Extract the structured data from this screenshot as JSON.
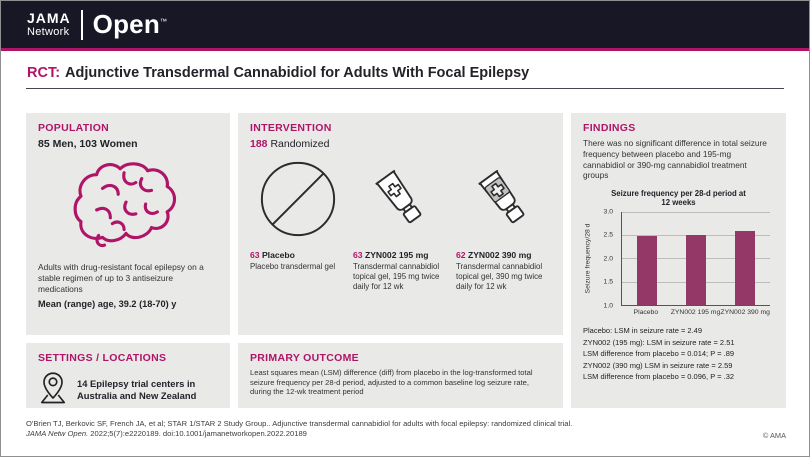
{
  "header": {
    "logo_jama": "JAMA",
    "logo_network": "Network",
    "logo_open": "Open",
    "logo_tm": "™"
  },
  "title": {
    "tag": "RCT:",
    "text": "Adjunctive Transdermal Cannabidiol for Adults With Focal Epilepsy"
  },
  "population": {
    "heading": "POPULATION",
    "counts": "85 Men, 103 Women",
    "description": "Adults with drug-resistant focal epilepsy on a stable regimen of up to 3 antiseizure medications",
    "age": "Mean (range) age, 39.2 (18-70) y"
  },
  "settings": {
    "heading": "SETTINGS / LOCATIONS",
    "text": "14 Epilepsy trial centers in Australia and New Zealand"
  },
  "intervention": {
    "heading": "INTERVENTION",
    "randomized_count": "188",
    "randomized_label": "Randomized",
    "groups": [
      {
        "count": "63",
        "name": "Placebo",
        "description": "Placebo transdermal gel"
      },
      {
        "count": "63",
        "name": "ZYN002 195 mg",
        "description": "Transdermal cannabidiol topical gel, 195 mg twice daily for 12 wk"
      },
      {
        "count": "62",
        "name": "ZYN002 390 mg",
        "description": "Transdermal cannabidiol topical gel, 390 mg twice daily for 12 wk"
      }
    ]
  },
  "primary_outcome": {
    "heading": "PRIMARY OUTCOME",
    "text": "Least squares mean (LSM) difference (diff) from placebo in the log-transformed total seizure frequency per 28-d period, adjusted to a common baseline log seizure rate, during the 12-wk treatment period"
  },
  "findings": {
    "heading": "FINDINGS",
    "summary": "There was no significant difference in total seizure frequency between placebo and 195-mg cannabidiol or 390-mg cannabidiol treatment groups",
    "results": [
      "Placebo: LSM in seizure rate = 2.49",
      "ZYN002 (195 mg): LSM in seizure rate = 2.51",
      "LSM difference from placebo = 0.014; P = .89",
      "ZYN002 (390 mg) LSM in seizure rate = 2.59",
      "LSM difference from placebo = 0.096, P = .32"
    ]
  },
  "chart_data": {
    "type": "bar",
    "title": "Seizure frequency per 28-d period at 12 weeks",
    "ylabel": "Seizure frequency/28 d",
    "categories": [
      "Placebo",
      "ZYN002 195 mg",
      "ZYN002 390 mg"
    ],
    "values": [
      2.49,
      2.51,
      2.59
    ],
    "ylim": [
      1.0,
      3.0
    ],
    "yticks": [
      3.0,
      2.5,
      2.0,
      1.5,
      1.0
    ],
    "bar_color": "#943868",
    "grid": true,
    "legend_position": "none"
  },
  "footer": {
    "citation_line1": "O'Brien TJ, Berkovic SF, French JA, et al; STAR 1/STAR 2 Study Group.. Adjunctive transdermal cannabidiol for adults with focal epilepsy: randomized clinical trial.",
    "citation_journal": "JAMA Netw Open.",
    "citation_line2_rest": " 2022;5(7):e2220189. doi:10.1001/jamanetworkopen.2022.20189",
    "copyright": "© AMA"
  },
  "colors": {
    "accent": "#b01467",
    "header_bg": "#171726",
    "panel_bg": "#e9e9e8",
    "bar": "#943868"
  }
}
